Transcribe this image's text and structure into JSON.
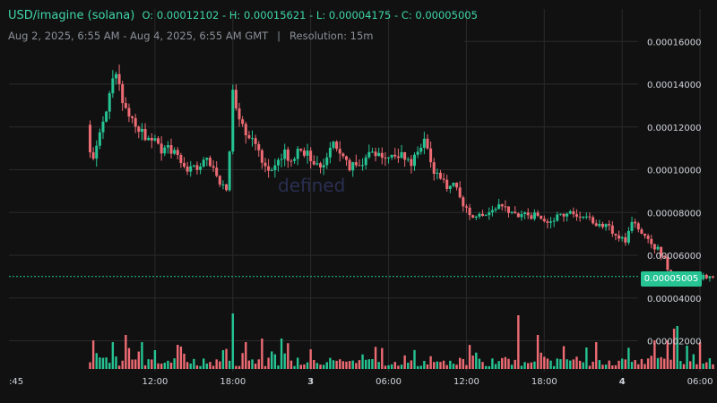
{
  "header": {
    "title": "USD/imagine (solana)",
    "ohlc": "O: 0.00012102 - H: 0.00015621 - L: 0.00004175 - C: 0.00005005",
    "range": "Aug 2, 2025, 6:55 AM - Aug 4, 2025, 6:55 AM GMT",
    "separator": "|",
    "resolution": "Resolution: 15m"
  },
  "watermark": "defined",
  "current_price_label": "0.00005005",
  "colors": {
    "up": "#26c493",
    "down": "#ee6b74",
    "background": "#111111",
    "grid": "#2a2a2a"
  },
  "chart_data": {
    "type": "candlestick",
    "title": "USD/imagine (solana)",
    "y_ticks": [
      "0.00016000",
      "0.00014000",
      "0.00012000",
      "0.00010000",
      "0.00008000",
      "0.00006000",
      "0.00004000",
      "0.00002000"
    ],
    "y_tick_values": [
      0.00016,
      0.00014,
      0.00012,
      0.0001,
      8e-05,
      6e-05,
      4e-05,
      2e-05
    ],
    "x_ticks": [
      {
        "label": ":45",
        "hour": 0.75,
        "bold": false
      },
      {
        "label": "12:00",
        "hour": 12,
        "bold": false
      },
      {
        "label": "18:00",
        "hour": 18,
        "bold": false
      },
      {
        "label": "3",
        "hour": 24,
        "bold": true
      },
      {
        "label": "06:00",
        "hour": 30,
        "bold": false
      },
      {
        "label": "12:00",
        "hour": 36,
        "bold": false
      },
      {
        "label": "18:00",
        "hour": 42,
        "bold": false
      },
      {
        "label": "4",
        "hour": 48,
        "bold": true
      },
      {
        "label": "06:00",
        "hour": 54,
        "bold": false
      }
    ],
    "ylim": [
      8e-06,
      0.00017
    ],
    "current_price": 5.005e-05,
    "open": 0.00012102,
    "high": 0.00015621,
    "low": 4.175e-05,
    "close": 5.005e-05,
    "price_path": [
      [
        6.92,
        0.000121
      ],
      [
        7.4,
        0.0001
      ],
      [
        7.9,
        0.000118
      ],
      [
        8.5,
        0.000128
      ],
      [
        9.1,
        0.00015
      ],
      [
        9.6,
        0.000135
      ],
      [
        10.2,
        0.000125
      ],
      [
        11.0,
        0.000118
      ],
      [
        11.7,
        0.000113
      ],
      [
        12.4,
        0.000112
      ],
      [
        13.0,
        0.000108
      ],
      [
        13.6,
        0.00011
      ],
      [
        14.2,
        0.000102
      ],
      [
        14.8,
        9.8e-05
      ],
      [
        15.5,
        0.000102
      ],
      [
        16.2,
        0.000105
      ],
      [
        16.8,
        0.0001
      ],
      [
        17.4,
        9.2e-05
      ],
      [
        17.9,
        9.3e-05
      ],
      [
        18.2,
        0.000135
      ],
      [
        18.7,
        0.000126
      ],
      [
        19.3,
        0.000118
      ],
      [
        19.9,
        0.000112
      ],
      [
        20.5,
        0.000105
      ],
      [
        21.0,
        9.8e-05
      ],
      [
        21.6,
        0.000102
      ],
      [
        22.2,
        0.000108
      ],
      [
        22.8,
        0.000104
      ],
      [
        23.4,
        0.00011
      ],
      [
        24.0,
        0.000108
      ],
      [
        24.6,
        0.0001
      ],
      [
        25.2,
        0.000104
      ],
      [
        25.8,
        0.000112
      ],
      [
        26.4,
        0.00011
      ],
      [
        27.0,
        0.000103
      ],
      [
        27.6,
        0.000101
      ],
      [
        28.2,
        0.000104
      ],
      [
        28.8,
        0.000108
      ],
      [
        29.4,
        0.000106
      ],
      [
        30.0,
        0.000108
      ],
      [
        30.6,
        0.000104
      ],
      [
        31.2,
        0.000106
      ],
      [
        31.8,
        0.000103
      ],
      [
        32.4,
        0.000106
      ],
      [
        33.0,
        0.000116
      ],
      [
        33.6,
        0.0001
      ],
      [
        34.2,
        9.6e-05
      ],
      [
        34.8,
        9.3e-05
      ],
      [
        35.4,
        9.2e-05
      ],
      [
        36.0,
        8.3e-05
      ],
      [
        36.6,
        7.9e-05
      ],
      [
        37.2,
        8e-05
      ],
      [
        37.8,
        7.8e-05
      ],
      [
        38.4,
        8.1e-05
      ],
      [
        39.0,
        8.5e-05
      ],
      [
        39.5,
        7.8e-05
      ],
      [
        40.1,
        8e-05
      ],
      [
        40.7,
        7.9e-05
      ],
      [
        41.3,
        7.8e-05
      ],
      [
        41.9,
        7.9e-05
      ],
      [
        42.5,
        7.7e-05
      ],
      [
        43.1,
        7.7e-05
      ],
      [
        43.7,
        7.8e-05
      ],
      [
        44.3,
        7.9e-05
      ],
      [
        44.9,
        7.8e-05
      ],
      [
        45.5,
        7.7e-05
      ],
      [
        46.1,
        7.5e-05
      ],
      [
        46.7,
        7.4e-05
      ],
      [
        47.3,
        7.2e-05
      ],
      [
        47.9,
        7e-05
      ],
      [
        48.5,
        6.6e-05
      ],
      [
        49.1,
        7.8e-05
      ],
      [
        49.7,
        7e-05
      ],
      [
        50.3,
        6.6e-05
      ],
      [
        50.9,
        6.3e-05
      ],
      [
        51.4,
        6e-05
      ],
      [
        51.9,
        5e-05
      ],
      [
        52.4,
        4.7e-05
      ],
      [
        52.9,
        5e-05
      ],
      [
        53.4,
        5.2e-05
      ],
      [
        53.8,
        4.9e-05
      ],
      [
        54.3,
        5e-05
      ],
      [
        54.8,
        5e-05
      ]
    ],
    "volume_spikes": [
      [
        7.2,
        0.32
      ],
      [
        8.8,
        0.3
      ],
      [
        9.7,
        0.38
      ],
      [
        11.0,
        0.3
      ],
      [
        18.1,
        0.62
      ],
      [
        19.1,
        0.3
      ],
      [
        20.2,
        0.34
      ],
      [
        21.7,
        0.34
      ],
      [
        40.0,
        0.6
      ],
      [
        41.4,
        0.38
      ],
      [
        46.1,
        0.3
      ],
      [
        50.4,
        0.32
      ],
      [
        51.4,
        0.32
      ],
      [
        51.9,
        0.45
      ],
      [
        52.3,
        0.48
      ],
      [
        53.0,
        0.26
      ]
    ],
    "seed": 20250802
  }
}
